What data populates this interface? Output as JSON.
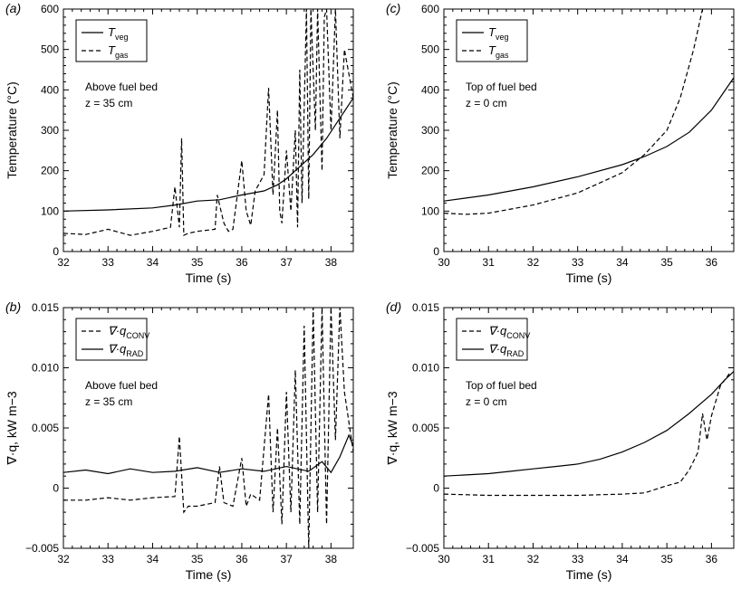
{
  "chart_data": [
    {
      "panel": "(a)",
      "type": "line",
      "xlabel": "Time (s)",
      "ylabel": "Temperature (°C)",
      "xlim": [
        32,
        38.5
      ],
      "ylim": [
        0,
        600
      ],
      "xticks": [
        "32",
        "33",
        "34",
        "35",
        "36",
        "37",
        "38"
      ],
      "yticks": [
        "0",
        "100",
        "200",
        "300",
        "400",
        "500",
        "600"
      ],
      "annotation": [
        "Above fuel bed",
        "z = 35 cm"
      ],
      "legend": {
        "position": "top-left",
        "entries": [
          {
            "main": "T",
            "sub": "veg",
            "style": "solid"
          },
          {
            "main": "T",
            "sub": "gas",
            "style": "dashed"
          }
        ]
      },
      "series": [
        {
          "name": "T_veg",
          "style": "solid",
          "x": [
            32,
            33,
            34,
            34.5,
            35,
            35.5,
            36,
            36.5,
            36.8,
            37,
            37.3,
            37.6,
            37.9,
            38.2,
            38.5
          ],
          "y": [
            100,
            103,
            108,
            115,
            125,
            128,
            140,
            150,
            165,
            180,
            210,
            240,
            280,
            330,
            380
          ]
        },
        {
          "name": "T_gas",
          "style": "dashed",
          "x": [
            32,
            32.5,
            33,
            33.5,
            34,
            34.4,
            34.5,
            34.6,
            34.65,
            34.7,
            34.8,
            35,
            35.4,
            35.45,
            35.6,
            35.7,
            35.8,
            36,
            36.1,
            36.2,
            36.3,
            36.5,
            36.6,
            36.7,
            36.8,
            36.85,
            36.9,
            37,
            37.1,
            37.2,
            37.25,
            37.3,
            37.35,
            37.45,
            37.5,
            37.55,
            37.65,
            37.7,
            37.8,
            37.85,
            37.9,
            38,
            38.1,
            38.2,
            38.3,
            38.5
          ],
          "y": [
            45,
            42,
            55,
            40,
            50,
            60,
            160,
            60,
            280,
            40,
            45,
            50,
            55,
            140,
            70,
            50,
            55,
            225,
            100,
            65,
            150,
            190,
            405,
            140,
            350,
            100,
            70,
            250,
            100,
            300,
            60,
            450,
            120,
            600,
            130,
            600,
            300,
            600,
            200,
            580,
            600,
            300,
            600,
            280,
            500,
            380
          ]
        }
      ]
    },
    {
      "panel": "(c)",
      "type": "line",
      "xlabel": "Time (s)",
      "ylabel": "Temperature (°C)",
      "xlim": [
        30,
        36.5
      ],
      "ylim": [
        0,
        600
      ],
      "xticks": [
        "30",
        "31",
        "32",
        "33",
        "34",
        "35",
        "36"
      ],
      "yticks": [
        "0",
        "100",
        "200",
        "300",
        "400",
        "500",
        "600"
      ],
      "annotation": [
        "Top of fuel bed",
        "z = 0 cm"
      ],
      "legend": {
        "position": "top-left",
        "entries": [
          {
            "main": "T",
            "sub": "veg",
            "style": "solid"
          },
          {
            "main": "T",
            "sub": "gas",
            "style": "dashed"
          }
        ]
      },
      "series": [
        {
          "name": "T_veg",
          "style": "solid",
          "x": [
            30,
            31,
            32,
            33,
            34,
            34.5,
            35,
            35.5,
            36,
            36.5
          ],
          "y": [
            125,
            140,
            160,
            185,
            215,
            235,
            260,
            295,
            350,
            430
          ]
        },
        {
          "name": "T_gas",
          "style": "dashed",
          "x": [
            30,
            30.5,
            31,
            31.5,
            32,
            32.5,
            33,
            33.5,
            34,
            34.5,
            35,
            35.3,
            35.6,
            35.8
          ],
          "y": [
            95,
            92,
            95,
            105,
            115,
            130,
            145,
            170,
            195,
            240,
            300,
            380,
            500,
            600
          ]
        }
      ]
    },
    {
      "panel": "(b)",
      "type": "line",
      "xlabel": "Time (s)",
      "ylabel": "∇·q, kW m−3",
      "xlim": [
        32,
        38.5
      ],
      "ylim": [
        -0.005,
        0.015
      ],
      "xticks": [
        "32",
        "33",
        "34",
        "35",
        "36",
        "37",
        "38"
      ],
      "yticks": [
        "−0.005",
        "0",
        "0.005",
        "0.010",
        "0.015"
      ],
      "annotation": [
        "Above fuel bed",
        "z = 35 cm"
      ],
      "legend": {
        "position": "top-left",
        "entries": [
          {
            "main": "∇·q",
            "sub": "CONV",
            "style": "dashed"
          },
          {
            "main": "∇·q",
            "sub": "RAD",
            "style": "solid"
          }
        ]
      },
      "series": [
        {
          "name": "∇·q_CONV",
          "style": "dashed",
          "x": [
            32,
            32.5,
            33,
            33.5,
            34,
            34.5,
            34.6,
            34.7,
            34.8,
            35,
            35.4,
            35.5,
            35.6,
            35.8,
            36,
            36.1,
            36.2,
            36.4,
            36.6,
            36.7,
            36.8,
            36.9,
            37,
            37.1,
            37.2,
            37.3,
            37.4,
            37.5,
            37.6,
            37.7,
            37.8,
            37.9,
            38,
            38.1,
            38.2,
            38.3,
            38.5
          ],
          "y": [
            -0.001,
            -0.001,
            -0.0008,
            -0.001,
            -0.0008,
            -0.0007,
            0.0043,
            -0.002,
            -0.0015,
            -0.0015,
            -0.0012,
            0.0018,
            -0.0012,
            -0.0015,
            0.0025,
            -0.0015,
            -0.0005,
            -0.001,
            0.0078,
            -0.002,
            0.005,
            -0.003,
            0.008,
            -0.002,
            0.0098,
            -0.003,
            0.0135,
            -0.005,
            0.015,
            -0.002,
            0.015,
            -0.003,
            0.015,
            0.004,
            0.015,
            0.008,
            0.003
          ]
        },
        {
          "name": "∇·q_RAD",
          "style": "solid",
          "x": [
            32,
            32.5,
            33,
            33.5,
            34,
            34.5,
            35,
            35.5,
            36,
            36.5,
            37,
            37.5,
            37.8,
            38,
            38.2,
            38.4,
            38.5
          ],
          "y": [
            0.0013,
            0.0015,
            0.0012,
            0.0016,
            0.0013,
            0.0014,
            0.0017,
            0.0013,
            0.0016,
            0.0014,
            0.0018,
            0.0014,
            0.0022,
            0.0013,
            0.0026,
            0.0044,
            0.0035
          ]
        }
      ]
    },
    {
      "panel": "(d)",
      "type": "line",
      "xlabel": "Time (s)",
      "ylabel": "∇·q, kW m−3",
      "xlim": [
        30,
        36.5
      ],
      "ylim": [
        -0.005,
        0.015
      ],
      "xticks": [
        "30",
        "31",
        "32",
        "33",
        "34",
        "35",
        "36"
      ],
      "yticks": [
        "−0.005",
        "0",
        "0.005",
        "0.010",
        "0.015"
      ],
      "annotation": [
        "Top of fuel bed",
        "z = 0 cm"
      ],
      "legend": {
        "position": "top-left",
        "entries": [
          {
            "main": "∇·q",
            "sub": "CONV",
            "style": "dashed"
          },
          {
            "main": "∇·q",
            "sub": "RAD",
            "style": "solid"
          }
        ]
      },
      "series": [
        {
          "name": "∇·q_CONV",
          "style": "dashed",
          "x": [
            30,
            31,
            32,
            33,
            34,
            34.5,
            35,
            35.3,
            35.5,
            35.7,
            35.8,
            35.9,
            36,
            36.2,
            36.4
          ],
          "y": [
            -0.0005,
            -0.0006,
            -0.0006,
            -0.0006,
            -0.0005,
            -0.0004,
            0.0002,
            0.0005,
            0.0015,
            0.003,
            0.0062,
            0.004,
            0.006,
            0.0085,
            0.0095
          ]
        },
        {
          "name": "∇·q_RAD",
          "style": "solid",
          "x": [
            30,
            30.5,
            31,
            31.5,
            32,
            32.5,
            33,
            33.5,
            34,
            34.5,
            35,
            35.5,
            36,
            36.3,
            36.5
          ],
          "y": [
            0.001,
            0.0011,
            0.0012,
            0.0014,
            0.0016,
            0.0018,
            0.002,
            0.0024,
            0.003,
            0.0038,
            0.0048,
            0.0062,
            0.0078,
            0.009,
            0.0097
          ]
        }
      ]
    }
  ]
}
